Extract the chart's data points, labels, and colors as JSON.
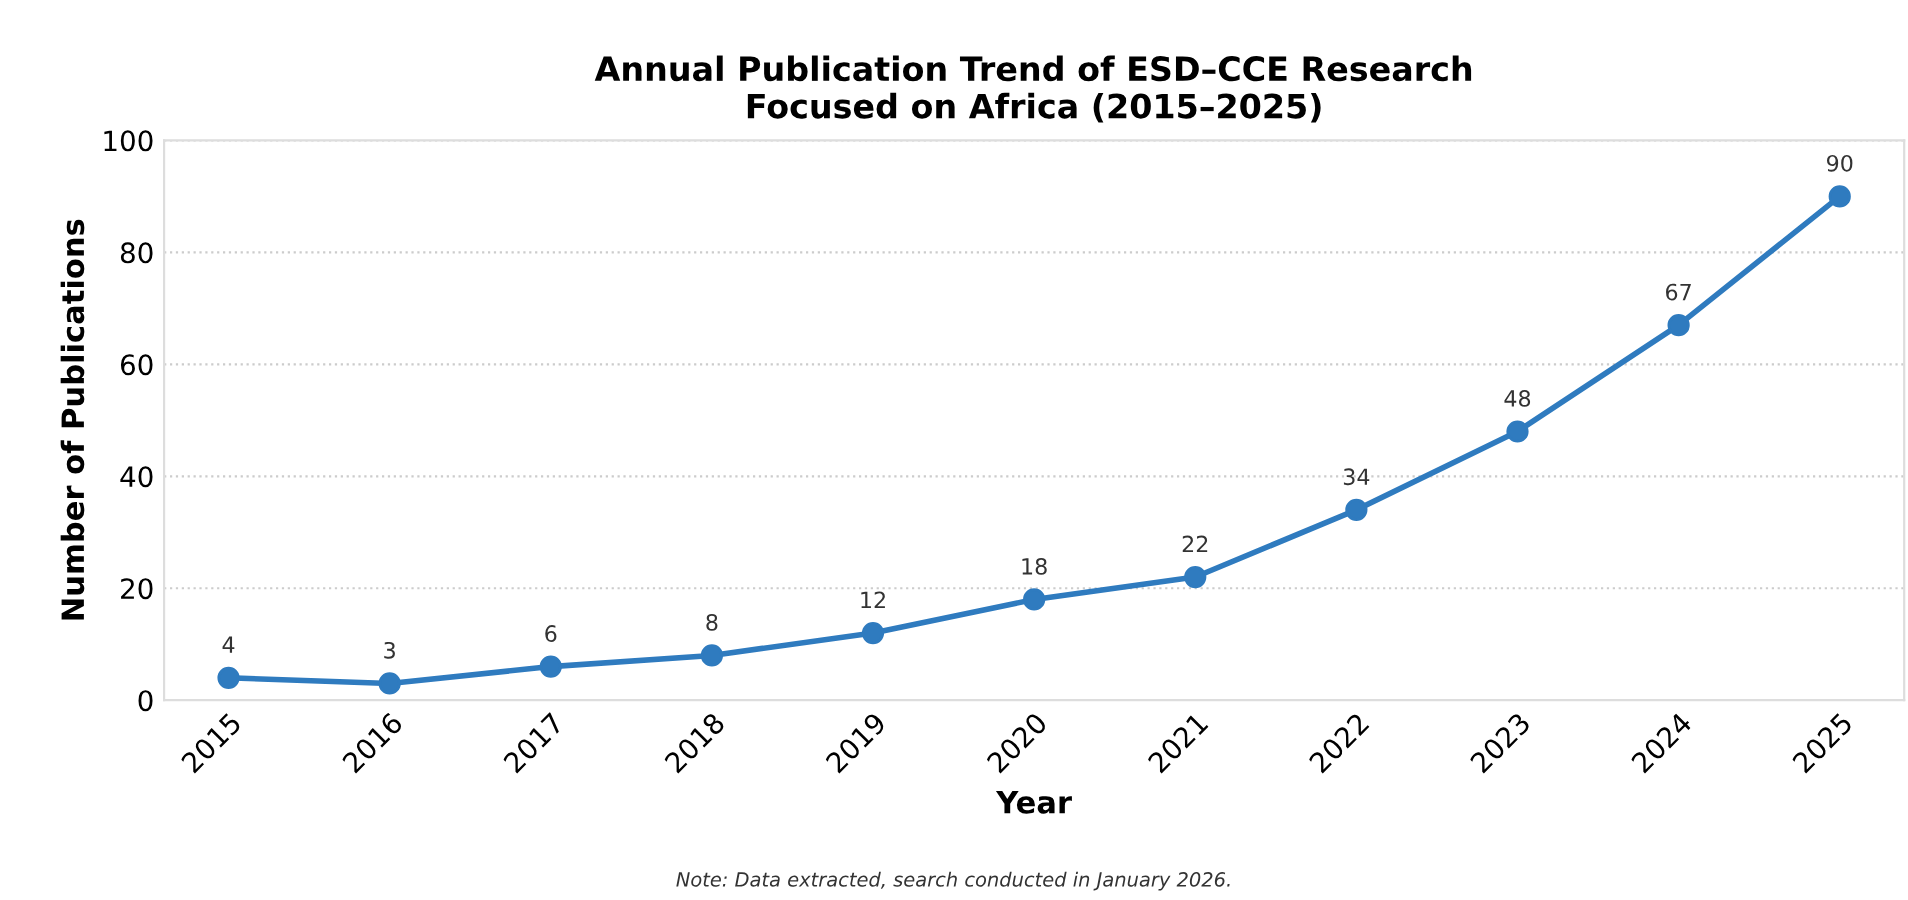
{
  "chart_data": {
    "type": "line",
    "title": "Annual Publication Trend of ESD–CCE Research\nFocused on Africa (2015–2025)",
    "xlabel": "Year",
    "ylabel": "Number of Publications",
    "categories": [
      "2015",
      "2016",
      "2017",
      "2018",
      "2019",
      "2020",
      "2021",
      "2022",
      "2023",
      "2024",
      "2025"
    ],
    "series": [
      {
        "color": "#2f7bbf",
        "values": [
          4,
          3,
          6,
          8,
          12,
          18,
          22,
          34,
          48,
          67,
          90
        ]
      }
    ],
    "ylim": [
      0,
      100
    ],
    "yticks": [
      0,
      20,
      40,
      60,
      80,
      100
    ],
    "grid": "y",
    "marker": "circle",
    "line_style": "solid",
    "data_labels": true,
    "annotations": [
      "Note: Data extracted, search conducted in January 2026."
    ]
  }
}
